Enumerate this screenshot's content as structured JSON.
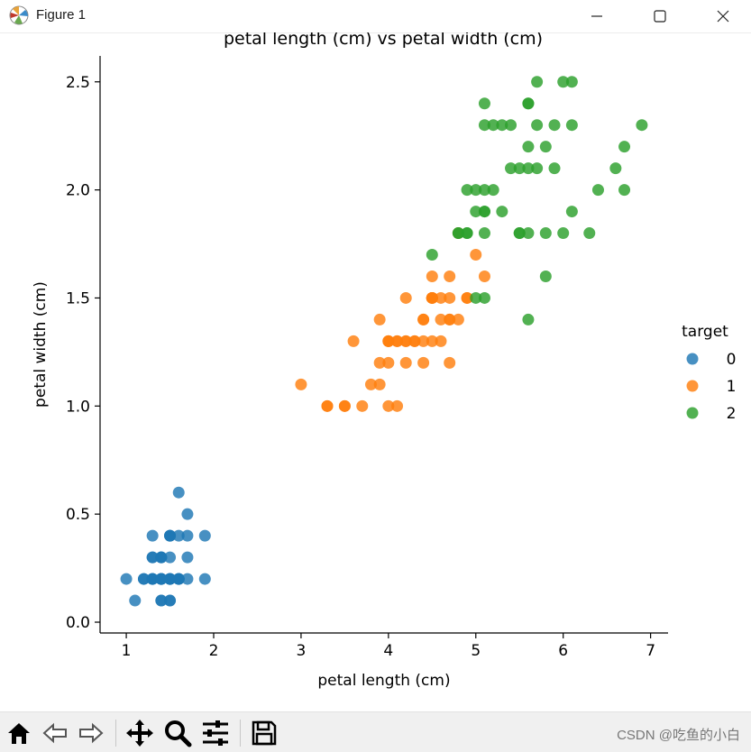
{
  "window": {
    "title": "Figure 1",
    "icon": "matplotlib-icon"
  },
  "window_controls": [
    "minimize-icon",
    "maximize-icon",
    "close-icon"
  ],
  "toolbar": {
    "buttons": [
      "home-icon",
      "back-icon",
      "forward-icon",
      "pan-icon",
      "zoom-icon",
      "configure-icon",
      "save-icon"
    ],
    "coords_text": "CSDN @吃鱼的小白"
  },
  "colors": {
    "0": "#1f77b4",
    "1": "#ff7f0e",
    "2": "#2ca02c"
  },
  "chart_data": {
    "type": "scatter",
    "title": "petal length (cm) vs petal width (cm)",
    "xlabel": "petal length (cm)",
    "ylabel": "petal width (cm)",
    "xlim": [
      0.7,
      7.2
    ],
    "ylim": [
      -0.05,
      2.62
    ],
    "xticks": [
      1,
      2,
      3,
      4,
      5,
      6,
      7
    ],
    "yticks": [
      0.0,
      0.5,
      1.0,
      1.5,
      2.0,
      2.5
    ],
    "grid": false,
    "legend": {
      "title": "target",
      "placement": "right",
      "labels": [
        "0",
        "1",
        "2"
      ]
    },
    "series": [
      {
        "name": "0",
        "color": "#1f77b4",
        "points": [
          [
            1.4,
            0.2
          ],
          [
            1.4,
            0.2
          ],
          [
            1.3,
            0.2
          ],
          [
            1.5,
            0.2
          ],
          [
            1.4,
            0.2
          ],
          [
            1.7,
            0.4
          ],
          [
            1.4,
            0.3
          ],
          [
            1.5,
            0.2
          ],
          [
            1.4,
            0.2
          ],
          [
            1.5,
            0.1
          ],
          [
            1.5,
            0.2
          ],
          [
            1.6,
            0.2
          ],
          [
            1.4,
            0.1
          ],
          [
            1.1,
            0.1
          ],
          [
            1.2,
            0.2
          ],
          [
            1.5,
            0.4
          ],
          [
            1.3,
            0.4
          ],
          [
            1.4,
            0.3
          ],
          [
            1.7,
            0.3
          ],
          [
            1.5,
            0.3
          ],
          [
            1.7,
            0.2
          ],
          [
            1.5,
            0.4
          ],
          [
            1.0,
            0.2
          ],
          [
            1.7,
            0.5
          ],
          [
            1.9,
            0.2
          ],
          [
            1.6,
            0.2
          ],
          [
            1.6,
            0.4
          ],
          [
            1.5,
            0.2
          ],
          [
            1.4,
            0.2
          ],
          [
            1.6,
            0.2
          ],
          [
            1.6,
            0.2
          ],
          [
            1.5,
            0.4
          ],
          [
            1.5,
            0.1
          ],
          [
            1.4,
            0.2
          ],
          [
            1.5,
            0.2
          ],
          [
            1.2,
            0.2
          ],
          [
            1.3,
            0.2
          ],
          [
            1.4,
            0.1
          ],
          [
            1.3,
            0.2
          ],
          [
            1.5,
            0.2
          ],
          [
            1.3,
            0.3
          ],
          [
            1.3,
            0.3
          ],
          [
            1.3,
            0.2
          ],
          [
            1.6,
            0.6
          ],
          [
            1.9,
            0.4
          ],
          [
            1.4,
            0.3
          ],
          [
            1.6,
            0.2
          ],
          [
            1.4,
            0.2
          ],
          [
            1.5,
            0.2
          ],
          [
            1.4,
            0.2
          ]
        ]
      },
      {
        "name": "1",
        "color": "#ff7f0e",
        "points": [
          [
            4.7,
            1.4
          ],
          [
            4.5,
            1.5
          ],
          [
            4.9,
            1.5
          ],
          [
            4.0,
            1.3
          ],
          [
            4.6,
            1.5
          ],
          [
            4.5,
            1.3
          ],
          [
            4.7,
            1.6
          ],
          [
            3.3,
            1.0
          ],
          [
            4.6,
            1.3
          ],
          [
            3.9,
            1.4
          ],
          [
            3.5,
            1.0
          ],
          [
            4.2,
            1.5
          ],
          [
            4.0,
            1.0
          ],
          [
            4.7,
            1.4
          ],
          [
            3.6,
            1.3
          ],
          [
            4.4,
            1.4
          ],
          [
            4.5,
            1.5
          ],
          [
            4.1,
            1.0
          ],
          [
            4.5,
            1.5
          ],
          [
            3.9,
            1.1
          ],
          [
            4.8,
            1.8
          ],
          [
            4.0,
            1.3
          ],
          [
            4.9,
            1.5
          ],
          [
            4.7,
            1.2
          ],
          [
            4.3,
            1.3
          ],
          [
            4.4,
            1.4
          ],
          [
            4.8,
            1.4
          ],
          [
            5.0,
            1.7
          ],
          [
            4.5,
            1.5
          ],
          [
            3.5,
            1.0
          ],
          [
            3.8,
            1.1
          ],
          [
            3.7,
            1.0
          ],
          [
            3.9,
            1.2
          ],
          [
            5.1,
            1.6
          ],
          [
            4.5,
            1.5
          ],
          [
            4.5,
            1.6
          ],
          [
            4.7,
            1.5
          ],
          [
            4.4,
            1.3
          ],
          [
            4.1,
            1.3
          ],
          [
            4.0,
            1.3
          ],
          [
            4.4,
            1.2
          ],
          [
            4.6,
            1.4
          ],
          [
            4.0,
            1.2
          ],
          [
            3.3,
            1.0
          ],
          [
            4.2,
            1.3
          ],
          [
            4.2,
            1.2
          ],
          [
            4.2,
            1.3
          ],
          [
            4.3,
            1.3
          ],
          [
            3.0,
            1.1
          ],
          [
            4.1,
            1.3
          ]
        ]
      },
      {
        "name": "2",
        "color": "#2ca02c",
        "points": [
          [
            6.0,
            2.5
          ],
          [
            5.1,
            1.9
          ],
          [
            5.9,
            2.1
          ],
          [
            5.6,
            1.8
          ],
          [
            5.8,
            2.2
          ],
          [
            6.6,
            2.1
          ],
          [
            4.5,
            1.7
          ],
          [
            6.3,
            1.8
          ],
          [
            5.8,
            1.8
          ],
          [
            6.1,
            2.5
          ],
          [
            5.1,
            2.0
          ],
          [
            5.3,
            1.9
          ],
          [
            5.5,
            2.1
          ],
          [
            5.0,
            2.0
          ],
          [
            5.1,
            2.4
          ],
          [
            5.3,
            2.3
          ],
          [
            5.5,
            1.8
          ],
          [
            6.7,
            2.2
          ],
          [
            6.9,
            2.3
          ],
          [
            5.0,
            1.5
          ],
          [
            5.7,
            2.3
          ],
          [
            4.9,
            2.0
          ],
          [
            6.7,
            2.0
          ],
          [
            4.9,
            1.8
          ],
          [
            5.7,
            2.1
          ],
          [
            6.0,
            1.8
          ],
          [
            4.8,
            1.8
          ],
          [
            4.9,
            1.8
          ],
          [
            5.6,
            2.1
          ],
          [
            5.8,
            1.6
          ],
          [
            6.1,
            1.9
          ],
          [
            6.4,
            2.0
          ],
          [
            5.6,
            2.2
          ],
          [
            5.1,
            1.5
          ],
          [
            5.6,
            1.4
          ],
          [
            6.1,
            2.3
          ],
          [
            5.6,
            2.4
          ],
          [
            5.5,
            1.8
          ],
          [
            4.8,
            1.8
          ],
          [
            5.4,
            2.1
          ],
          [
            5.6,
            2.4
          ],
          [
            5.1,
            2.3
          ],
          [
            5.1,
            1.9
          ],
          [
            5.9,
            2.3
          ],
          [
            5.7,
            2.5
          ],
          [
            5.2,
            2.3
          ],
          [
            5.0,
            1.9
          ],
          [
            5.2,
            2.0
          ],
          [
            5.4,
            2.3
          ],
          [
            5.1,
            1.8
          ]
        ]
      }
    ]
  }
}
